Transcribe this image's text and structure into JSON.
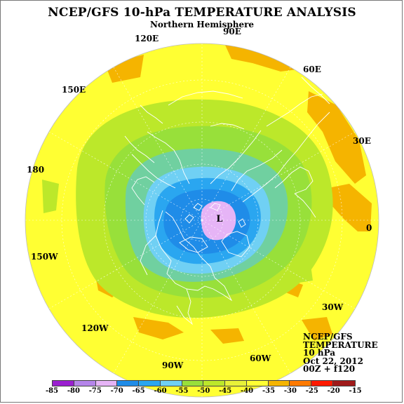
{
  "title": "NCEP/GFS 10-hPa TEMPERATURE ANALYSIS",
  "subtitle": "Northern Hemisphere",
  "longitude_labels": {
    "e90": "90E",
    "e60": "60E",
    "e30": "30E",
    "zero": "0",
    "w30": "30W",
    "w60": "60W",
    "w90": "90W",
    "w120": "120W",
    "w150": "150W",
    "d180": "180",
    "e150": "150E",
    "e120": "120E"
  },
  "low_marker": "L",
  "info": {
    "model": "NCEP/GFS",
    "field": "TEMPERATURE",
    "level": "10 hPa",
    "date": "Oct 22, 2012",
    "run": "00Z + f120"
  },
  "colorbar": {
    "ticks": [
      "-85",
      "-80",
      "-75",
      "-70",
      "-65",
      "-60",
      "-55",
      "-50",
      "-45",
      "-40",
      "-35",
      "-30",
      "-25",
      "-20",
      "-15"
    ],
    "colors": [
      "#9a1fd0",
      "#b585ea",
      "#e6b4f6",
      "#1f8ce8",
      "#2aa6f0",
      "#70d0f4",
      "#98e03a",
      "#bce82a",
      "#e8f238",
      "#ffff33",
      "#f5b400",
      "#ff7a00",
      "#ff1a00",
      "#a01a1a"
    ]
  },
  "colors": {
    "ocean_background": "#ffff33",
    "cold_core": "#e6b4f6",
    "warm_patches": "#f5b400",
    "coastlines": "#ffffff"
  }
}
